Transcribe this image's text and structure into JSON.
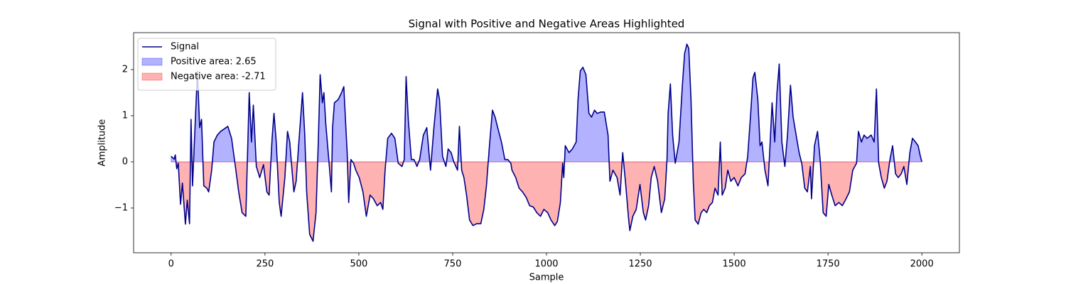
{
  "chart_data": {
    "type": "line",
    "title": "Signal with Positive and Negative Areas Highlighted",
    "xlabel": "Sample",
    "ylabel": "Amplitude",
    "xlim": [
      -100,
      2100
    ],
    "ylim": [
      -1.97,
      2.8
    ],
    "xticks": [
      0,
      250,
      500,
      750,
      1000,
      1250,
      1500,
      1750,
      2000
    ],
    "yticks": [
      {
        "value": -1,
        "label": "−1"
      },
      0,
      1,
      2
    ],
    "legend": "upper left",
    "x": [
      0,
      8,
      11,
      15,
      19,
      25,
      30,
      38,
      43,
      49,
      53,
      57,
      70,
      76,
      81,
      87,
      95,
      100,
      108,
      114,
      123,
      132,
      151,
      161,
      170,
      180,
      189,
      199,
      208,
      214,
      219,
      227,
      236,
      246,
      255,
      261,
      269,
      274,
      280,
      288,
      293,
      303,
      310,
      316,
      322,
      327,
      333,
      341,
      350,
      356,
      361,
      369,
      378,
      386,
      392,
      397,
      403,
      407,
      412,
      420,
      427,
      430,
      435,
      445,
      454,
      460,
      465,
      469,
      473,
      479,
      486,
      492,
      501,
      511,
      520,
      530,
      539,
      549,
      558,
      564,
      570,
      577,
      587,
      596,
      605,
      615,
      621,
      626,
      632,
      640,
      647,
      655,
      662,
      672,
      681,
      691,
      700,
      710,
      715,
      723,
      732,
      738,
      746,
      753,
      763,
      768,
      774,
      780,
      787,
      795,
      804,
      814,
      825,
      833,
      840,
      848,
      856,
      863,
      870,
      880,
      889,
      897,
      905,
      908,
      918,
      927,
      936,
      946,
      955,
      965,
      974,
      984,
      993,
      1003,
      1012,
      1022,
      1029,
      1037,
      1043,
      1046,
      1050,
      1060,
      1069,
      1079,
      1084,
      1090,
      1097,
      1105,
      1113,
      1120,
      1128,
      1135,
      1145,
      1154,
      1164,
      1169,
      1177,
      1188,
      1196,
      1203,
      1211,
      1219,
      1222,
      1230,
      1239,
      1249,
      1258,
      1264,
      1272,
      1279,
      1287,
      1296,
      1306,
      1315,
      1321,
      1324,
      1330,
      1336,
      1343,
      1353,
      1362,
      1368,
      1374,
      1379,
      1385,
      1391,
      1396,
      1404,
      1412,
      1419,
      1427,
      1434,
      1442,
      1449,
      1457,
      1463,
      1468,
      1476,
      1483,
      1491,
      1500,
      1510,
      1519,
      1529,
      1536,
      1544,
      1550,
      1555,
      1563,
      1569,
      1574,
      1582,
      1590,
      1595,
      1601,
      1608,
      1614,
      1620,
      1627,
      1635,
      1642,
      1650,
      1657,
      1665,
      1673,
      1680,
      1688,
      1695,
      1703,
      1706,
      1714,
      1722,
      1729,
      1737,
      1745,
      1752,
      1760,
      1769,
      1779,
      1788,
      1798,
      1807,
      1816,
      1826,
      1831,
      1839,
      1846,
      1854,
      1865,
      1873,
      1879,
      1885,
      1892,
      1900,
      1907,
      1915,
      1922,
      1930,
      1937,
      1945,
      1952,
      1960,
      1968,
      1975,
      1983,
      1990,
      1996,
      2000
    ],
    "series": [
      {
        "name": "Signal",
        "color": "#00008b",
        "values": [
          0.12,
          0.06,
          0.15,
          -0.15,
          -0.03,
          -0.92,
          -0.46,
          -1.35,
          -0.83,
          -1.34,
          0.92,
          -0.52,
          1.97,
          0.74,
          0.92,
          -0.52,
          -0.57,
          -0.65,
          -0.18,
          0.43,
          0.58,
          0.66,
          0.77,
          0.51,
          -0.03,
          -0.65,
          -1.1,
          -1.18,
          1.5,
          0.43,
          1.23,
          -0.1,
          -0.34,
          -0.06,
          -0.65,
          -0.72,
          0.51,
          1.05,
          0.43,
          -0.88,
          -1.18,
          -0.34,
          0.66,
          0.43,
          -0.18,
          -0.65,
          -0.42,
          0.51,
          1.5,
          0.58,
          -0.65,
          -1.57,
          -1.72,
          -1.1,
          0.43,
          1.89,
          1.28,
          1.5,
          0.82,
          0.05,
          -0.65,
          0.74,
          1.28,
          1.35,
          1.5,
          1.63,
          0.82,
          0.2,
          -0.88,
          0.05,
          -0.03,
          -0.18,
          -0.34,
          -0.65,
          -1.18,
          -0.72,
          -0.8,
          -0.95,
          -0.88,
          -1.03,
          -0.18,
          0.51,
          0.62,
          0.51,
          -0.03,
          -0.1,
          0.05,
          1.85,
          0.89,
          0.05,
          0.05,
          -0.1,
          0.05,
          0.58,
          0.74,
          -0.18,
          0.74,
          1.58,
          1.35,
          0.12,
          -0.1,
          0.28,
          0.2,
          0,
          -0.18,
          0.77,
          -0.18,
          -0.34,
          -0.72,
          -1.26,
          -1.38,
          -1.34,
          -1.34,
          -1.03,
          -0.52,
          0.35,
          1.12,
          0.97,
          0.74,
          0.43,
          0.05,
          0.05,
          -0.03,
          -0.18,
          -0.34,
          -0.57,
          -0.65,
          -0.77,
          -0.95,
          -0.98,
          -1.1,
          -1.18,
          -1.03,
          -1.1,
          -1.26,
          -1.38,
          -1.29,
          -0.88,
          -0.03,
          -0.34,
          0.35,
          0.2,
          0.28,
          0.43,
          1.35,
          1.97,
          2.05,
          1.89,
          1.05,
          0.97,
          1.12,
          1.05,
          1.08,
          1.08,
          0.58,
          -0.42,
          -0.18,
          -0.34,
          -0.72,
          0.2,
          -0.49,
          -1.26,
          -1.49,
          -1.18,
          -1.03,
          -0.49,
          -1.1,
          -1.26,
          -0.95,
          -0.34,
          -0.1,
          -0.42,
          -1.1,
          -0.8,
          0.05,
          1.05,
          1.69,
          0.58,
          -0.03,
          0.43,
          1.66,
          2.35,
          2.55,
          2.46,
          1.35,
          -0.42,
          -1.26,
          -1.35,
          -1.1,
          -1.03,
          -1.1,
          -0.95,
          -0.88,
          -0.57,
          -0.72,
          0.43,
          -0.72,
          -0.57,
          -0.18,
          -0.42,
          -0.34,
          -0.52,
          -0.34,
          -0.26,
          0.12,
          1.05,
          1.82,
          1.94,
          1.35,
          0.35,
          0.43,
          -0.18,
          -0.52,
          0.28,
          1.28,
          0.43,
          1.5,
          2.12,
          0.43,
          -0.1,
          0.58,
          1.66,
          0.97,
          0.58,
          0.2,
          -0.03,
          -0.57,
          -0.65,
          -0.1,
          -0.8,
          0.35,
          0.66,
          0.05,
          -1.1,
          -1.18,
          -0.49,
          -0.72,
          -0.95,
          -0.88,
          -0.95,
          -0.8,
          -0.65,
          -0.18,
          -0.03,
          0.66,
          0.43,
          0.58,
          0.51,
          0.58,
          0.43,
          1.58,
          -0.03,
          -0.34,
          -0.57,
          -0.42,
          0.05,
          0.35,
          -0.26,
          -0.34,
          -0.26,
          -0.1,
          -0.49,
          0.2,
          0.51,
          0.43,
          0.35,
          0.12,
          0
        ]
      }
    ],
    "fills": [
      {
        "name": "Positive area: 2.65",
        "color": "#0000ff",
        "alpha": 0.3,
        "side": "positive"
      },
      {
        "name": "Negative area: -2.71",
        "color": "#ff0000",
        "alpha": 0.3,
        "side": "negative"
      }
    ]
  }
}
